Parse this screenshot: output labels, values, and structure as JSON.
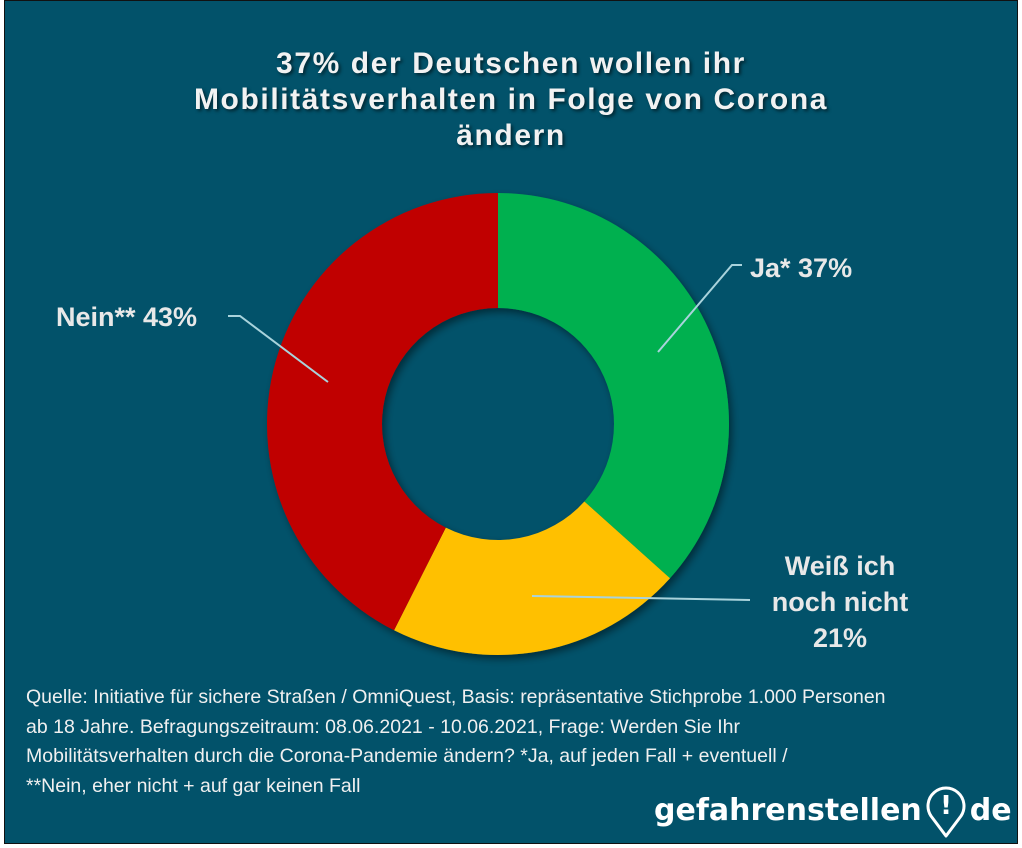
{
  "colors": {
    "background": "#02526a",
    "ja": "#00b050",
    "weiss": "#ffc000",
    "nein": "#c00000",
    "text": "#f2f2f2",
    "leader_line": "#a9d3dc"
  },
  "chart_data": {
    "type": "pie",
    "variant": "donut",
    "title": "37% der Deutschen wollen ihr Mobilitätsverhalten in Folge von Corona ändern",
    "title_lines": [
      "37% der Deutschen wollen ihr",
      "Mobilitätsverhalten in Folge von Corona",
      "ändern"
    ],
    "start_angle_deg": 0,
    "direction": "clockwise",
    "slices": [
      {
        "key": "ja",
        "label": "Ja* 37%",
        "name": "Ja*",
        "value": 37,
        "color": "#00b050"
      },
      {
        "key": "weiss",
        "label_lines": [
          "Weiß ich",
          "noch nicht",
          "21%"
        ],
        "name": "Weiß ich noch nicht",
        "value": 21,
        "color": "#ffc000"
      },
      {
        "key": "nein",
        "label": "Nein** 43%",
        "name": "Nein**",
        "value": 43,
        "color": "#c00000"
      }
    ],
    "unit": "%"
  },
  "source": {
    "lines": [
      "Quelle: Initiative für sichere Straßen / OmniQuest, Basis: repräsentative Stichprobe 1.000 Personen",
      "ab 18 Jahre. Befragungszeitraum: 08.06.2021 - 10.06.2021,  Frage: Werden Sie Ihr",
      "Mobilitätsverhalten durch die Corona-Pandemie ändern? *Ja, auf jeden Fall + eventuell /",
      "**Nein, eher nicht + auf gar keinen Fall"
    ]
  },
  "logo": {
    "text_main": "gefahrenstellen",
    "pin_glyph": "!",
    "text_tld": "de",
    "icon": "map-pin-exclamation-icon"
  }
}
